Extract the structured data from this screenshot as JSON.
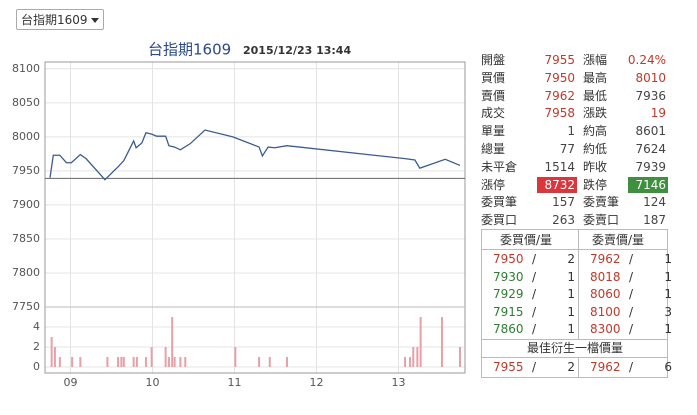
{
  "selector": {
    "label": "台指期1609"
  },
  "chart_data": [
    {
      "type": "line",
      "title": "台指期1609",
      "subtitle": "2015/12/23 13:44",
      "color": "#3b5b92",
      "x": [
        8.75,
        8.79,
        8.87,
        8.95,
        9.01,
        9.12,
        9.19,
        9.42,
        9.58,
        9.65,
        9.77,
        9.8,
        9.87,
        9.92,
        9.99,
        10.05,
        10.16,
        10.2,
        10.27,
        10.34,
        10.46,
        10.64,
        10.98,
        11.3,
        11.34,
        11.41,
        11.49,
        11.64,
        13.08,
        13.2,
        13.26,
        13.57,
        13.75
      ],
      "values": [
        7940,
        7973,
        7973,
        7962,
        7962,
        7974,
        7968,
        7937,
        7956,
        7965,
        7994,
        7984,
        7991,
        8006,
        8004,
        8001,
        8001,
        7987,
        7985,
        7981,
        7990,
        8010,
        8000,
        7985,
        7972,
        7985,
        7984,
        7987,
        7968,
        7966,
        7954,
        7967,
        7958
      ],
      "xlim": [
        8.75,
        13.75
      ],
      "ylim": [
        7750,
        8110
      ],
      "yticks": [
        7750,
        7800,
        7850,
        7900,
        7950,
        8000,
        8050,
        8100
      ],
      "xticks": [
        {
          "value": 9,
          "label": "09"
        },
        {
          "value": 10,
          "label": "10"
        },
        {
          "value": 11,
          "label": "11"
        },
        {
          "value": 12,
          "label": "12"
        },
        {
          "value": 13,
          "label": "13"
        }
      ],
      "grid": true
    },
    {
      "type": "bar",
      "color": "#e8a0a6",
      "x": [
        8.77,
        8.81,
        8.87,
        9.02,
        9.12,
        9.45,
        9.58,
        9.62,
        9.65,
        9.77,
        9.81,
        9.92,
        9.99,
        10.16,
        10.2,
        10.24,
        10.27,
        10.34,
        10.4,
        11.01,
        11.3,
        11.43,
        11.64,
        13.08,
        13.14,
        13.18,
        13.23,
        13.27,
        13.53,
        13.75
      ],
      "values": [
        3,
        2,
        1,
        1,
        1,
        1,
        1,
        1,
        1,
        1,
        1,
        1,
        2,
        2,
        1,
        5,
        1,
        1,
        1,
        2,
        1,
        1,
        1,
        1,
        1,
        2,
        2,
        5,
        5,
        2
      ],
      "xlim": [
        8.75,
        13.75
      ],
      "ylim": [
        0,
        6
      ],
      "yticks": [
        0,
        2,
        4
      ],
      "grid": true
    }
  ],
  "quote": {
    "rows": [
      [
        {
          "label": "開盤",
          "value": 7955,
          "color": "#c0392b"
        },
        {
          "label": "漲幅",
          "value": "0.24%",
          "color": "#c0392b"
        }
      ],
      [
        {
          "label": "買價",
          "value": 7950,
          "color": "#c0392b"
        },
        {
          "label": "最高",
          "value": 8010,
          "color": "#c0392b"
        }
      ],
      [
        {
          "label": "賣價",
          "value": 7962,
          "color": "#c0392b"
        },
        {
          "label": "最低",
          "value": 7936,
          "color": "#444444"
        }
      ],
      [
        {
          "label": "成交",
          "value": 7958,
          "color": "#c0392b"
        },
        {
          "label": "漲跌",
          "value": 19,
          "color": "#c0392b"
        }
      ],
      [
        {
          "label": "單量",
          "value": 1,
          "color": "#444444"
        },
        {
          "label": "約高",
          "value": 8601,
          "color": "#444444"
        }
      ],
      [
        {
          "label": "總量",
          "value": 77,
          "color": "#444444"
        },
        {
          "label": "約低",
          "value": 7624,
          "color": "#444444"
        }
      ],
      [
        {
          "label": "未平倉",
          "value": 1514,
          "color": "#444444"
        },
        {
          "label": "昨收",
          "value": 7939,
          "color": "#444444"
        }
      ],
      [
        {
          "label": "漲停",
          "value": 8732,
          "color": "#ffffff",
          "bg": "#d9363e"
        },
        {
          "label": "跌停",
          "value": 7146,
          "color": "#ffffff",
          "bg": "#3f8f3f"
        }
      ],
      [
        {
          "label": "委買筆",
          "value": 157,
          "color": "#444444"
        },
        {
          "label": "委賣筆",
          "value": 124,
          "color": "#444444"
        }
      ],
      [
        {
          "label": "委買口",
          "value": 263,
          "color": "#444444"
        },
        {
          "label": "委賣口",
          "value": 187,
          "color": "#444444"
        }
      ]
    ]
  },
  "book": {
    "headers": [
      "委買價/量",
      "委賣價/量"
    ],
    "separator": "/",
    "rows": [
      [
        {
          "price": 7950,
          "qty": 2,
          "color": "#c0392b"
        },
        {
          "price": 7962,
          "qty": 1,
          "color": "#c0392b"
        }
      ],
      [
        {
          "price": 7930,
          "qty": 1,
          "color": "#2e7d32"
        },
        {
          "price": 8018,
          "qty": 1,
          "color": "#c0392b"
        }
      ],
      [
        {
          "price": 7929,
          "qty": 1,
          "color": "#2e7d32"
        },
        {
          "price": 8060,
          "qty": 1,
          "color": "#c0392b"
        }
      ],
      [
        {
          "price": 7915,
          "qty": 1,
          "color": "#2e7d32"
        },
        {
          "price": 8100,
          "qty": 3,
          "color": "#c0392b"
        }
      ],
      [
        {
          "price": 7860,
          "qty": 1,
          "color": "#2e7d32"
        },
        {
          "price": 8300,
          "qty": 1,
          "color": "#c0392b"
        }
      ]
    ],
    "best_title": "最佳衍生一檔價量",
    "best": [
      {
        "price": 7955,
        "qty": 2,
        "color": "#c0392b"
      },
      {
        "price": 7962,
        "qty": 6,
        "color": "#c0392b"
      }
    ]
  }
}
